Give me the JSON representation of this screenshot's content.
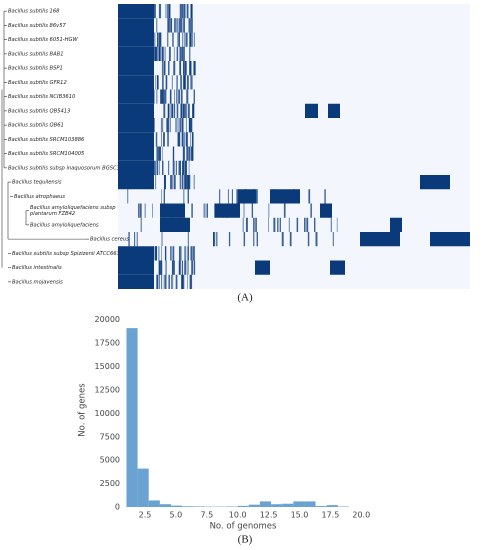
{
  "panel_a": {
    "label": "(A)",
    "taxa": [
      [
        "Bacillus subtilis 168"
      ],
      [
        "Bacillus subtilis 86v57"
      ],
      [
        "Bacillus subtilis 6051-HGW"
      ],
      [
        "Bacillus subtilis BAB1"
      ],
      [
        "Bacillus subtilis BSP1"
      ],
      [
        "Bacillus subtilis GFR12"
      ],
      [
        "Bacillus subtilis NCIB3610"
      ],
      [
        "Bacillus subtilis QB5413"
      ],
      [
        "Bacillus subtilis QB61"
      ],
      [
        "Bacillus subtilis SRCM103886"
      ],
      [
        "Bacillus subtilis SRCM104005"
      ],
      [
        "Bacillus subtilis subsp inaquosorum BGSC3A28"
      ],
      [
        "Bacillus tequilensis"
      ],
      [
        "Bacillus atrophaeus"
      ],
      [
        "Bacillus amyloliquefaciens subsp",
        "plantarum FZB42"
      ],
      [
        "Bacillus amyloliquefaciens"
      ],
      [
        "Bacillus cereus"
      ],
      [
        "Bacillus subtilis subsp Spizizenii ATCC6633"
      ],
      [
        "Bacillus intestinalis"
      ],
      [
        "Bacillus mojavensis"
      ]
    ]
  },
  "chart_data": {
    "type": "histogram",
    "panel_label": "(B)",
    "x_label": "No. of genomes",
    "y_label": "No. of genes",
    "color": "#6aa3d2",
    "bins": [
      1,
      1.9,
      2.8,
      3.7,
      4.6,
      5.5,
      6.4,
      7.3,
      8.2,
      9.1,
      10,
      10.9,
      11.8,
      12.7,
      13.6,
      14.5,
      15.4,
      16.3,
      17.2,
      18.1,
      19
    ],
    "values": [
      19100,
      4100,
      700,
      300,
      150,
      80,
      60,
      40,
      40,
      50,
      120,
      250,
      600,
      300,
      350,
      600,
      600,
      100,
      200,
      50
    ],
    "xlim": [
      0.8,
      20.3
    ],
    "ylim": [
      0,
      20500
    ],
    "xticks": [
      2.5,
      {
        "value": 5,
        "label": "5.0"
      },
      7.5,
      {
        "value": 10,
        "label": "10.0"
      },
      12.5,
      {
        "value": 15,
        "label": "15.0"
      },
      17.5,
      {
        "value": 20,
        "label": "20.0"
      }
    ],
    "yticks": [
      0,
      2500,
      5000,
      7500,
      10000,
      12500,
      15000,
      17500,
      20000
    ]
  }
}
